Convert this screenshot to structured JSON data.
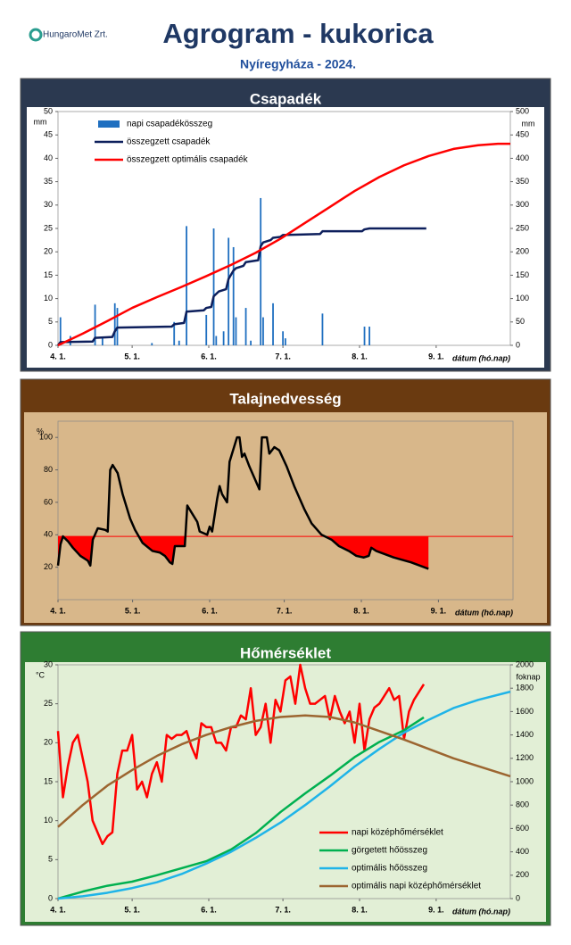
{
  "header": {
    "logo": "HungaroMet Zrt.",
    "title": "Agrogram - kukorica",
    "subtitle": "Nyíregyháza  - 2024."
  },
  "chart_data": [
    {
      "type": "combo",
      "title": "Csapadék",
      "ylabel": "mm",
      "y2label": "mm",
      "xlabel": "dátum (hó.nap)",
      "xlim": [
        0,
        183
      ],
      "xticks": [
        {
          "value": 0,
          "label": "4. 1."
        },
        {
          "value": 30,
          "label": "5. 1."
        },
        {
          "value": 61,
          "label": "6. 1."
        },
        {
          "value": 91,
          "label": "7. 1."
        },
        {
          "value": 122,
          "label": "8. 1."
        },
        {
          "value": 153,
          "label": "9. 1."
        }
      ],
      "ylim": [
        0,
        50
      ],
      "yticks": [
        0,
        5,
        10,
        15,
        20,
        25,
        30,
        35,
        40,
        45,
        50
      ],
      "y2lim": [
        0,
        500
      ],
      "y2ticks": [
        0,
        50,
        100,
        150,
        200,
        250,
        300,
        350,
        400,
        450,
        500
      ],
      "legend": "upper left",
      "series": [
        {
          "name": "napi csapadékösszeg",
          "type": "bar",
          "color": "#1f6fc0",
          "x": [
            1,
            5,
            15,
            18,
            23,
            24,
            38,
            47,
            49,
            52,
            60,
            63,
            64,
            67,
            69,
            71,
            72,
            76,
            78,
            82,
            83,
            87,
            91,
            92,
            107,
            124,
            126
          ],
          "values": [
            6,
            2,
            8.7,
            1.5,
            9,
            8,
            0.5,
            5,
            1,
            25.5,
            6.5,
            25,
            2,
            3,
            23,
            21,
            6,
            8,
            1,
            31.5,
            6,
            9,
            3,
            1.5,
            6.8,
            4,
            4
          ]
        },
        {
          "name": "összegzett csapadék",
          "type": "line",
          "axis": "y2",
          "color": "#0d1f5c",
          "x": [
            0,
            1,
            14,
            15,
            22,
            23,
            24,
            46,
            47,
            51,
            52,
            59,
            60,
            62,
            63,
            65,
            68,
            69,
            71,
            72,
            75,
            76,
            81,
            82,
            83,
            86,
            87,
            90,
            91,
            106,
            107,
            123,
            124,
            126,
            149
          ],
          "values": [
            0,
            7,
            8,
            16,
            18,
            30,
            38,
            40,
            45,
            48,
            72,
            75,
            80,
            82,
            105,
            115,
            120,
            142,
            160,
            165,
            170,
            178,
            182,
            212,
            220,
            225,
            230,
            232,
            236,
            238,
            244,
            244,
            248,
            250,
            250
          ]
        },
        {
          "name": "összegzett optimális csapadék",
          "type": "line",
          "axis": "y2",
          "color": "#ff0000",
          "x": [
            0,
            10,
            20,
            30,
            40,
            50,
            60,
            70,
            80,
            90,
            100,
            110,
            120,
            130,
            140,
            150,
            160,
            170,
            178,
            183
          ],
          "values": [
            0,
            25,
            52,
            80,
            103,
            125,
            148,
            172,
            198,
            228,
            262,
            296,
            330,
            360,
            385,
            405,
            420,
            428,
            431,
            431
          ]
        }
      ]
    },
    {
      "type": "combo",
      "title": "Talajnedvesség",
      "ylabel": "%",
      "xlabel": "dátum (hó.nap)",
      "xlim": [
        0,
        183
      ],
      "xticks": [
        {
          "value": 0,
          "label": "4. 1."
        },
        {
          "value": 30,
          "label": "5. 1."
        },
        {
          "value": 61,
          "label": "6. 1."
        },
        {
          "value": 91,
          "label": "7. 1."
        },
        {
          "value": 122,
          "label": "8. 1."
        },
        {
          "value": 153,
          "label": "9. 1."
        }
      ],
      "ylim": [
        0,
        110
      ],
      "yticks": [
        20,
        40,
        60,
        80,
        100
      ],
      "threshold": 39,
      "threshold_color": "#ff0000",
      "series": [
        {
          "type": "line",
          "color": "#000000",
          "x": [
            0,
            1,
            2,
            4,
            6,
            9,
            12,
            13,
            14,
            16,
            19,
            20,
            21,
            22,
            24,
            26,
            29,
            31,
            34,
            38,
            41,
            43,
            45,
            46,
            47,
            49,
            51,
            52,
            56,
            57,
            60,
            61,
            62,
            64,
            65,
            66,
            68,
            69,
            72,
            73,
            74,
            75,
            77,
            79,
            81,
            82,
            84,
            85,
            87,
            89,
            92,
            95,
            99,
            102,
            106,
            110,
            113,
            117,
            120,
            123,
            125,
            126,
            128,
            135,
            142,
            149
          ],
          "values": [
            21,
            34,
            39,
            36,
            32,
            27,
            24,
            21,
            37,
            44,
            43,
            42,
            80,
            83,
            78,
            65,
            50,
            43,
            35,
            30,
            29,
            27,
            23,
            22,
            33,
            33,
            33,
            58,
            48,
            42,
            40,
            45,
            42,
            62,
            70,
            65,
            60,
            85,
            100,
            100,
            88,
            90,
            82,
            75,
            68,
            100,
            100,
            90,
            94,
            92,
            82,
            70,
            56,
            47,
            40,
            37,
            33,
            30,
            27,
            26,
            27,
            32,
            30,
            26,
            23,
            19
          ]
        }
      ]
    },
    {
      "type": "combo",
      "title": "Hőmérséklet",
      "ylabel": "°C",
      "y2label": "foknap",
      "xlabel": "dátum (hó.nap)",
      "xlim": [
        0,
        183
      ],
      "xticks": [
        {
          "value": 0,
          "label": "4. 1."
        },
        {
          "value": 30,
          "label": "5. 1."
        },
        {
          "value": 61,
          "label": "6. 1."
        },
        {
          "value": 91,
          "label": "7. 1."
        },
        {
          "value": 122,
          "label": "8. 1."
        },
        {
          "value": 153,
          "label": "9. 1."
        }
      ],
      "ylim": [
        0,
        30
      ],
      "yticks": [
        0,
        5,
        10,
        15,
        20,
        25,
        30
      ],
      "y2lim": [
        0,
        2000
      ],
      "y2ticks": [
        0,
        200,
        400,
        600,
        800,
        1000,
        1200,
        1400,
        1600,
        1800,
        2000
      ],
      "legend": "lower right",
      "series": [
        {
          "name": "napi középhőmérséklet",
          "type": "line",
          "color": "#ff0000",
          "x": [
            0,
            2,
            4,
            6,
            8,
            10,
            12,
            14,
            16,
            18,
            20,
            22,
            24,
            26,
            28,
            30,
            32,
            34,
            36,
            38,
            40,
            42,
            44,
            46,
            48,
            50,
            52,
            54,
            56,
            58,
            60,
            62,
            64,
            66,
            68,
            70,
            72,
            74,
            76,
            78,
            80,
            82,
            84,
            86,
            88,
            90,
            92,
            94,
            96,
            98,
            100,
            102,
            104,
            106,
            108,
            110,
            112,
            114,
            116,
            118,
            120,
            122,
            124,
            126,
            128,
            130,
            132,
            134,
            136,
            138,
            140,
            142,
            144,
            146,
            148
          ],
          "values": [
            21.5,
            13,
            17,
            20,
            21,
            18,
            15,
            10,
            8.5,
            7,
            8,
            8.5,
            16,
            19,
            19,
            21,
            14,
            15,
            13,
            16,
            17.5,
            15,
            21,
            20.5,
            21,
            21,
            21.5,
            19.5,
            18,
            22.5,
            22,
            22,
            20,
            20,
            19,
            22,
            22,
            23.5,
            23,
            27,
            21,
            22,
            25,
            20,
            25.5,
            24,
            28,
            28.5,
            25,
            30,
            27,
            25,
            25,
            25.5,
            26,
            23,
            26,
            24,
            22.5,
            24,
            20,
            25,
            19,
            23,
            24.5,
            25,
            26,
            27,
            25.5,
            26,
            20.5,
            24,
            25.5,
            26.5,
            27.5
          ]
        },
        {
          "name": "görgetett hőösszeg",
          "type": "line",
          "axis": "y2",
          "color": "#00b050",
          "x": [
            0,
            10,
            20,
            30,
            40,
            50,
            60,
            70,
            80,
            90,
            100,
            110,
            120,
            130,
            140,
            148
          ],
          "values": [
            0,
            60,
            110,
            145,
            200,
            260,
            320,
            420,
            560,
            740,
            900,
            1050,
            1210,
            1340,
            1440,
            1550
          ]
        },
        {
          "name": "optimális hőösszeg",
          "type": "line",
          "axis": "y2",
          "color": "#1fb4e8",
          "x": [
            0,
            10,
            20,
            30,
            40,
            50,
            60,
            70,
            80,
            90,
            100,
            110,
            120,
            130,
            140,
            150,
            160,
            170,
            183
          ],
          "values": [
            0,
            20,
            50,
            90,
            140,
            210,
            300,
            400,
            520,
            650,
            800,
            960,
            1130,
            1280,
            1420,
            1530,
            1630,
            1700,
            1770
          ]
        },
        {
          "name": "optimális napi középhőmérséklet",
          "type": "line",
          "color": "#9c6530",
          "x": [
            0,
            10,
            20,
            30,
            40,
            50,
            60,
            70,
            80,
            90,
            100,
            110,
            120,
            130,
            140,
            150,
            160,
            170,
            183
          ],
          "values": [
            9.2,
            12,
            14.5,
            16.5,
            18.3,
            19.8,
            21,
            22,
            22.8,
            23.3,
            23.5,
            23.3,
            22.6,
            21.5,
            20.4,
            19.2,
            18,
            17,
            15.7
          ]
        }
      ]
    }
  ]
}
